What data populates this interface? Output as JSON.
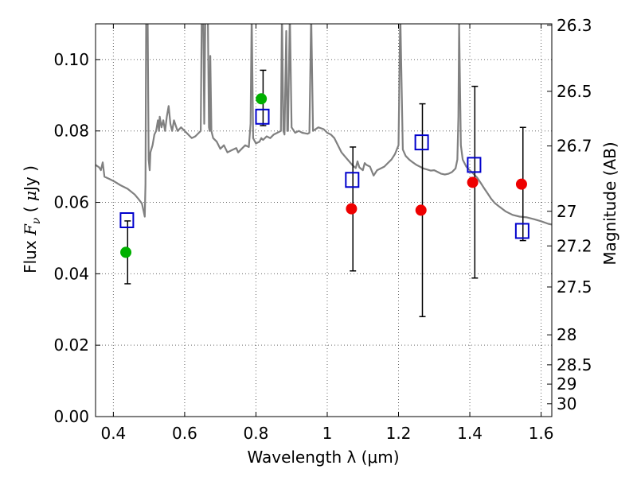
{
  "chart_data": {
    "type": "scatter",
    "xlabel": "Wavelength  λ (μm)",
    "ylabel_parts": [
      "Flux  ",
      "F",
      "ν",
      "  ( ",
      "μ",
      "Jy )"
    ],
    "y2label": "Magnitude (AB)",
    "xlim": [
      0.35,
      1.63
    ],
    "ylim": [
      0.0,
      0.11
    ],
    "grid": true,
    "x_ticks": [
      0.4,
      0.6,
      0.8,
      1.0,
      1.2,
      1.4,
      1.6
    ],
    "x_tick_labels": [
      "0.4",
      "0.6",
      "0.8",
      "1",
      "1.2",
      "1.4",
      "1.6"
    ],
    "y_ticks": [
      0.0,
      0.02,
      0.04,
      0.06,
      0.08,
      0.1
    ],
    "y_tick_labels": [
      "0.00",
      "0.02",
      "0.04",
      "0.06",
      "0.08",
      "0.10"
    ],
    "y2_ticks": [
      {
        "flux": 0.1096,
        "label": "26.3"
      },
      {
        "flux": 0.0911,
        "label": "26.5"
      },
      {
        "flux": 0.0758,
        "label": "26.7"
      },
      {
        "flux": 0.0575,
        "label": "27"
      },
      {
        "flux": 0.0478,
        "label": "27.2"
      },
      {
        "flux": 0.0363,
        "label": "27.5"
      },
      {
        "flux": 0.0229,
        "label": "28"
      },
      {
        "flux": 0.0145,
        "label": "28.5"
      },
      {
        "flux": 0.0091,
        "label": "29"
      },
      {
        "flux": 0.0036,
        "label": "30"
      }
    ],
    "colors": {
      "spectrum": "#808080",
      "green": "#00b000",
      "red": "#ee0000",
      "model_box": "#0000cc",
      "errorbar": "#000000",
      "grid": "#666666"
    },
    "series": [
      {
        "name": "model spectrum",
        "style": "line",
        "points": [
          [
            0.35,
            0.0705
          ],
          [
            0.36,
            0.0698
          ],
          [
            0.365,
            0.069
          ],
          [
            0.37,
            0.0712
          ],
          [
            0.375,
            0.0672
          ],
          [
            0.39,
            0.0665
          ],
          [
            0.4,
            0.066
          ],
          [
            0.42,
            0.0648
          ],
          [
            0.44,
            0.0638
          ],
          [
            0.46,
            0.0622
          ],
          [
            0.47,
            0.061
          ],
          [
            0.48,
            0.0597
          ],
          [
            0.485,
            0.0575
          ],
          [
            0.488,
            0.056
          ],
          [
            0.49,
            0.065
          ],
          [
            0.492,
            0.113
          ],
          [
            0.496,
            0.113
          ],
          [
            0.499,
            0.072
          ],
          [
            0.502,
            0.069
          ],
          [
            0.504,
            0.074
          ],
          [
            0.51,
            0.076
          ],
          [
            0.515,
            0.079
          ],
          [
            0.52,
            0.08
          ],
          [
            0.525,
            0.083
          ],
          [
            0.528,
            0.08
          ],
          [
            0.53,
            0.084
          ],
          [
            0.535,
            0.081
          ],
          [
            0.54,
            0.083
          ],
          [
            0.545,
            0.08
          ],
          [
            0.55,
            0.084
          ],
          [
            0.555,
            0.087
          ],
          [
            0.56,
            0.082
          ],
          [
            0.565,
            0.08
          ],
          [
            0.57,
            0.083
          ],
          [
            0.575,
            0.0815
          ],
          [
            0.58,
            0.08
          ],
          [
            0.59,
            0.081
          ],
          [
            0.6,
            0.08
          ],
          [
            0.61,
            0.079
          ],
          [
            0.615,
            0.0785
          ],
          [
            0.62,
            0.078
          ],
          [
            0.63,
            0.0785
          ],
          [
            0.64,
            0.0795
          ],
          [
            0.645,
            0.08
          ],
          [
            0.648,
            0.113
          ],
          [
            0.652,
            0.113
          ],
          [
            0.655,
            0.082
          ],
          [
            0.658,
            0.113
          ],
          [
            0.665,
            0.113
          ],
          [
            0.668,
            0.081
          ],
          [
            0.67,
            0.08
          ],
          [
            0.67,
            0.08
          ],
          [
            0.672,
            0.101
          ],
          [
            0.675,
            0.08
          ],
          [
            0.68,
            0.078
          ],
          [
            0.69,
            0.077
          ],
          [
            0.7,
            0.075
          ],
          [
            0.71,
            0.076
          ],
          [
            0.72,
            0.074
          ],
          [
            0.73,
            0.0745
          ],
          [
            0.74,
            0.075
          ],
          [
            0.745,
            0.0752
          ],
          [
            0.75,
            0.074
          ],
          [
            0.76,
            0.075
          ],
          [
            0.77,
            0.076
          ],
          [
            0.78,
            0.0755
          ],
          [
            0.785,
            0.082
          ],
          [
            0.788,
            0.113
          ],
          [
            0.792,
            0.078
          ],
          [
            0.8,
            0.0765
          ],
          [
            0.81,
            0.077
          ],
          [
            0.815,
            0.078
          ],
          [
            0.82,
            0.0775
          ],
          [
            0.83,
            0.0785
          ],
          [
            0.84,
            0.078
          ],
          [
            0.85,
            0.079
          ],
          [
            0.86,
            0.0795
          ],
          [
            0.87,
            0.08
          ],
          [
            0.873,
            0.113
          ],
          [
            0.877,
            0.08
          ],
          [
            0.88,
            0.079
          ],
          [
            0.885,
            0.108
          ],
          [
            0.888,
            0.08
          ],
          [
            0.89,
            0.08
          ],
          [
            0.895,
            0.113
          ],
          [
            0.9,
            0.081
          ],
          [
            0.91,
            0.0795
          ],
          [
            0.92,
            0.08
          ],
          [
            0.93,
            0.0795
          ],
          [
            0.945,
            0.0792
          ],
          [
            0.95,
            0.0795
          ],
          [
            0.955,
            0.113
          ],
          [
            0.96,
            0.08
          ],
          [
            0.975,
            0.081
          ],
          [
            0.99,
            0.0805
          ],
          [
            1.0,
            0.0795
          ],
          [
            1.01,
            0.079
          ],
          [
            1.02,
            0.078
          ],
          [
            1.03,
            0.076
          ],
          [
            1.04,
            0.074
          ],
          [
            1.05,
            0.0728
          ],
          [
            1.07,
            0.0705
          ],
          [
            1.08,
            0.0696
          ],
          [
            1.085,
            0.0715
          ],
          [
            1.09,
            0.0698
          ],
          [
            1.1,
            0.069
          ],
          [
            1.105,
            0.071
          ],
          [
            1.11,
            0.0705
          ],
          [
            1.12,
            0.07
          ],
          [
            1.13,
            0.0675
          ],
          [
            1.14,
            0.069
          ],
          [
            1.15,
            0.0695
          ],
          [
            1.16,
            0.07
          ],
          [
            1.17,
            0.071
          ],
          [
            1.18,
            0.072
          ],
          [
            1.19,
            0.0735
          ],
          [
            1.2,
            0.076
          ],
          [
            1.205,
            0.113
          ],
          [
            1.212,
            0.0748
          ],
          [
            1.22,
            0.073
          ],
          [
            1.23,
            0.072
          ],
          [
            1.24,
            0.0712
          ],
          [
            1.25,
            0.0705
          ],
          [
            1.26,
            0.07
          ],
          [
            1.27,
            0.0695
          ],
          [
            1.28,
            0.0692
          ],
          [
            1.29,
            0.0689
          ],
          [
            1.3,
            0.069
          ],
          [
            1.31,
            0.0685
          ],
          [
            1.32,
            0.068
          ],
          [
            1.33,
            0.0678
          ],
          [
            1.34,
            0.068
          ],
          [
            1.35,
            0.0685
          ],
          [
            1.36,
            0.0695
          ],
          [
            1.365,
            0.072
          ],
          [
            1.368,
            0.084
          ],
          [
            1.37,
            0.11
          ],
          [
            1.372,
            0.096
          ],
          [
            1.375,
            0.076
          ],
          [
            1.38,
            0.072
          ],
          [
            1.39,
            0.07
          ],
          [
            1.4,
            0.069
          ],
          [
            1.41,
            0.068
          ],
          [
            1.42,
            0.067
          ],
          [
            1.43,
            0.0655
          ],
          [
            1.44,
            0.064
          ],
          [
            1.45,
            0.0625
          ],
          [
            1.46,
            0.061
          ],
          [
            1.47,
            0.0598
          ],
          [
            1.48,
            0.059
          ],
          [
            1.5,
            0.0575
          ],
          [
            1.52,
            0.0565
          ],
          [
            1.54,
            0.056
          ],
          [
            1.56,
            0.0558
          ],
          [
            1.58,
            0.0553
          ],
          [
            1.6,
            0.0547
          ],
          [
            1.62,
            0.054
          ],
          [
            1.63,
            0.0538
          ]
        ]
      },
      {
        "name": "green detections",
        "style": "markers",
        "points": [
          [
            0.435,
            0.046
          ],
          [
            0.815,
            0.089
          ]
        ]
      },
      {
        "name": "red observations",
        "style": "markers",
        "points": [
          [
            1.068,
            0.0582
          ],
          [
            1.263,
            0.0578
          ],
          [
            1.408,
            0.0656
          ],
          [
            1.545,
            0.0651
          ]
        ]
      },
      {
        "name": "model band fluxes",
        "style": "open-squares",
        "points": [
          [
            0.438,
            0.055
          ],
          [
            0.818,
            0.084
          ],
          [
            1.07,
            0.0663
          ],
          [
            1.265,
            0.0768
          ],
          [
            1.412,
            0.0705
          ],
          [
            1.547,
            0.052
          ]
        ]
      }
    ],
    "errorbars": [
      {
        "x": 0.44,
        "low": 0.0372,
        "high": 0.0548
      },
      {
        "x": 0.82,
        "low": 0.0815,
        "high": 0.097
      },
      {
        "x": 1.072,
        "low": 0.0408,
        "high": 0.0755
      },
      {
        "x": 1.267,
        "low": 0.028,
        "high": 0.0876
      },
      {
        "x": 1.414,
        "low": 0.0388,
        "high": 0.0925
      },
      {
        "x": 1.549,
        "low": 0.0493,
        "high": 0.081
      }
    ]
  }
}
